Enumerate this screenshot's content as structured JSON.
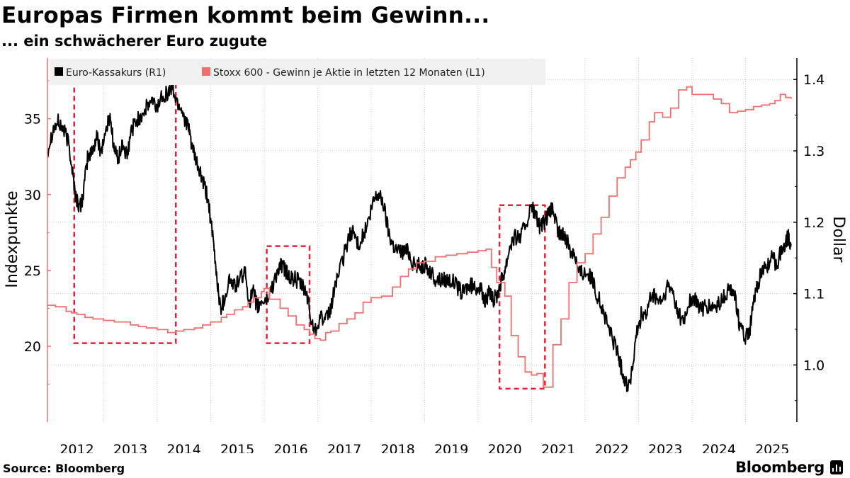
{
  "title": "Europas Firmen kommt beim Gewinn...",
  "subtitle": "... ein schwächerer Euro zugute",
  "source": "Source: Bloomberg",
  "brand": "Bloomberg",
  "colors": {
    "euro": "#000000",
    "eps": "#f26d6d",
    "highlight": "#e5213a",
    "grid": "#c8c8c8",
    "legend_bg": "#f0f0f0"
  },
  "chart_data": {
    "type": "line",
    "title": "Europas Firmen kommt beim Gewinn...",
    "subtitle": "... ein schwächerer Euro zugute",
    "x_ticks": [
      {
        "label": "2012",
        "year": 2012.5
      },
      {
        "label": "2013",
        "year": 2013.5
      },
      {
        "label": "2014",
        "year": 2014.5
      },
      {
        "label": "2015",
        "year": 2015.5
      },
      {
        "label": "2016",
        "year": 2016.5
      },
      {
        "label": "2017",
        "year": 2017.5
      },
      {
        "label": "2018",
        "year": 2018.5
      },
      {
        "label": "2019",
        "year": 2019.5
      },
      {
        "label": "2020",
        "year": 2020.5
      },
      {
        "label": "2021",
        "year": 2021.5
      },
      {
        "label": "2022",
        "year": 2022.5
      },
      {
        "label": "2023",
        "year": 2023.5
      },
      {
        "label": "2024",
        "year": 2024.5
      },
      {
        "label": "2025",
        "year": 2025.5
      }
    ],
    "x_range": [
      2011.95,
      2025.96
    ],
    "left_axis": {
      "label": "Indexpunkte",
      "range": [
        15,
        39
      ],
      "ticks": [
        20,
        25,
        30,
        35
      ],
      "tick_labels": [
        "20",
        "25",
        "30",
        "35"
      ]
    },
    "right_axis": {
      "label": "Dollar",
      "range": [
        0.92,
        1.43
      ],
      "ticks": [
        1.0,
        1.1,
        1.2,
        1.3,
        1.4
      ],
      "tick_labels": [
        "1.0",
        "1.1",
        "1.2",
        "1.3",
        "1.4"
      ]
    },
    "legend": {
      "position": "top-left",
      "items": [
        {
          "name": "Euro-Kassakurs (R1)",
          "series": "euro"
        },
        {
          "name": "Stoxx 600 - Gewinn je Aktie in letzten 12 Monaten (L1)",
          "series": "eps"
        }
      ]
    },
    "series": [
      {
        "id": "euro",
        "name": "Euro-Kassakurs (R1)",
        "axis": "right",
        "style": "noisy-line",
        "points": [
          [
            2011.95,
            1.3
          ],
          [
            2012.05,
            1.33
          ],
          [
            2012.15,
            1.34
          ],
          [
            2012.25,
            1.33
          ],
          [
            2012.35,
            1.31
          ],
          [
            2012.42,
            1.27
          ],
          [
            2012.48,
            1.235
          ],
          [
            2012.56,
            1.22
          ],
          [
            2012.62,
            1.24
          ],
          [
            2012.7,
            1.29
          ],
          [
            2012.8,
            1.3
          ],
          [
            2012.87,
            1.32
          ],
          [
            2012.95,
            1.3
          ],
          [
            2013.05,
            1.33
          ],
          [
            2013.12,
            1.35
          ],
          [
            2013.2,
            1.3
          ],
          [
            2013.28,
            1.29
          ],
          [
            2013.36,
            1.31
          ],
          [
            2013.44,
            1.29
          ],
          [
            2013.52,
            1.33
          ],
          [
            2013.6,
            1.34
          ],
          [
            2013.7,
            1.35
          ],
          [
            2013.8,
            1.36
          ],
          [
            2013.9,
            1.37
          ],
          [
            2014.0,
            1.36
          ],
          [
            2014.1,
            1.38
          ],
          [
            2014.2,
            1.38
          ],
          [
            2014.28,
            1.39
          ],
          [
            2014.36,
            1.37
          ],
          [
            2014.45,
            1.36
          ],
          [
            2014.55,
            1.34
          ],
          [
            2014.62,
            1.32
          ],
          [
            2014.7,
            1.29
          ],
          [
            2014.8,
            1.27
          ],
          [
            2014.88,
            1.25
          ],
          [
            2014.96,
            1.23
          ],
          [
            2015.05,
            1.17
          ],
          [
            2015.12,
            1.12
          ],
          [
            2015.18,
            1.08
          ],
          [
            2015.25,
            1.09
          ],
          [
            2015.35,
            1.12
          ],
          [
            2015.45,
            1.11
          ],
          [
            2015.55,
            1.12
          ],
          [
            2015.64,
            1.13
          ],
          [
            2015.72,
            1.09
          ],
          [
            2015.8,
            1.1
          ],
          [
            2015.88,
            1.08
          ],
          [
            2015.96,
            1.09
          ],
          [
            2016.05,
            1.09
          ],
          [
            2016.15,
            1.11
          ],
          [
            2016.25,
            1.13
          ],
          [
            2016.33,
            1.14
          ],
          [
            2016.42,
            1.13
          ],
          [
            2016.5,
            1.12
          ],
          [
            2016.6,
            1.12
          ],
          [
            2016.7,
            1.11
          ],
          [
            2016.8,
            1.1
          ],
          [
            2016.88,
            1.06
          ],
          [
            2016.96,
            1.05
          ],
          [
            2017.05,
            1.07
          ],
          [
            2017.15,
            1.06
          ],
          [
            2017.25,
            1.08
          ],
          [
            2017.35,
            1.12
          ],
          [
            2017.45,
            1.14
          ],
          [
            2017.55,
            1.17
          ],
          [
            2017.65,
            1.19
          ],
          [
            2017.75,
            1.17
          ],
          [
            2017.85,
            1.18
          ],
          [
            2017.95,
            1.2
          ],
          [
            2018.05,
            1.23
          ],
          [
            2018.12,
            1.24
          ],
          [
            2018.22,
            1.23
          ],
          [
            2018.32,
            1.19
          ],
          [
            2018.4,
            1.17
          ],
          [
            2018.5,
            1.16
          ],
          [
            2018.6,
            1.16
          ],
          [
            2018.7,
            1.16
          ],
          [
            2018.8,
            1.14
          ],
          [
            2018.9,
            1.14
          ],
          [
            2019.0,
            1.14
          ],
          [
            2019.1,
            1.13
          ],
          [
            2019.2,
            1.12
          ],
          [
            2019.3,
            1.12
          ],
          [
            2019.4,
            1.12
          ],
          [
            2019.5,
            1.12
          ],
          [
            2019.6,
            1.11
          ],
          [
            2019.7,
            1.1
          ],
          [
            2019.8,
            1.11
          ],
          [
            2019.9,
            1.11
          ],
          [
            2020.0,
            1.11
          ],
          [
            2020.08,
            1.1
          ],
          [
            2020.14,
            1.09
          ],
          [
            2020.2,
            1.1
          ],
          [
            2020.28,
            1.09
          ],
          [
            2020.36,
            1.1
          ],
          [
            2020.44,
            1.12
          ],
          [
            2020.52,
            1.14
          ],
          [
            2020.6,
            1.17
          ],
          [
            2020.7,
            1.18
          ],
          [
            2020.8,
            1.18
          ],
          [
            2020.9,
            1.2
          ],
          [
            2021.0,
            1.22
          ],
          [
            2021.08,
            1.21
          ],
          [
            2021.16,
            1.19
          ],
          [
            2021.24,
            1.2
          ],
          [
            2021.32,
            1.21
          ],
          [
            2021.4,
            1.22
          ],
          [
            2021.48,
            1.19
          ],
          [
            2021.56,
            1.18
          ],
          [
            2021.64,
            1.18
          ],
          [
            2021.72,
            1.16
          ],
          [
            2021.8,
            1.16
          ],
          [
            2021.88,
            1.13
          ],
          [
            2021.96,
            1.13
          ],
          [
            2022.05,
            1.13
          ],
          [
            2022.12,
            1.12
          ],
          [
            2022.22,
            1.1
          ],
          [
            2022.32,
            1.08
          ],
          [
            2022.4,
            1.06
          ],
          [
            2022.5,
            1.04
          ],
          [
            2022.6,
            1.02
          ],
          [
            2022.66,
            1.0
          ],
          [
            2022.74,
            0.98
          ],
          [
            2022.8,
            0.97
          ],
          [
            2022.88,
            0.99
          ],
          [
            2022.96,
            1.04
          ],
          [
            2023.05,
            1.07
          ],
          [
            2023.15,
            1.07
          ],
          [
            2023.25,
            1.1
          ],
          [
            2023.35,
            1.09
          ],
          [
            2023.45,
            1.09
          ],
          [
            2023.55,
            1.11
          ],
          [
            2023.65,
            1.1
          ],
          [
            2023.75,
            1.07
          ],
          [
            2023.85,
            1.06
          ],
          [
            2023.95,
            1.09
          ],
          [
            2024.05,
            1.09
          ],
          [
            2024.15,
            1.08
          ],
          [
            2024.25,
            1.08
          ],
          [
            2024.35,
            1.08
          ],
          [
            2024.45,
            1.08
          ],
          [
            2024.55,
            1.09
          ],
          [
            2024.65,
            1.1
          ],
          [
            2024.75,
            1.11
          ],
          [
            2024.82,
            1.09
          ],
          [
            2024.9,
            1.05
          ],
          [
            2024.98,
            1.04
          ],
          [
            2025.06,
            1.04
          ],
          [
            2025.14,
            1.08
          ],
          [
            2025.22,
            1.11
          ],
          [
            2025.3,
            1.13
          ],
          [
            2025.4,
            1.14
          ],
          [
            2025.5,
            1.15
          ],
          [
            2025.58,
            1.14
          ],
          [
            2025.66,
            1.16
          ],
          [
            2025.74,
            1.17
          ],
          [
            2025.8,
            1.18
          ],
          [
            2025.85,
            1.17
          ]
        ]
      },
      {
        "id": "eps",
        "name": "Stoxx 600 - Gewinn je Aktie in letzten 12 Monaten (L1)",
        "axis": "left",
        "style": "step-line",
        "points": [
          [
            2011.95,
            22.7
          ],
          [
            2012.1,
            22.6
          ],
          [
            2012.3,
            22.3
          ],
          [
            2012.4,
            22.2
          ],
          [
            2012.5,
            22.1
          ],
          [
            2012.65,
            21.9
          ],
          [
            2012.8,
            21.8
          ],
          [
            2013.0,
            21.7
          ],
          [
            2013.2,
            21.6
          ],
          [
            2013.3,
            21.6
          ],
          [
            2013.5,
            21.4
          ],
          [
            2013.65,
            21.3
          ],
          [
            2013.8,
            21.2
          ],
          [
            2014.0,
            21.1
          ],
          [
            2014.2,
            20.9
          ],
          [
            2014.35,
            21.0
          ],
          [
            2014.5,
            21.1
          ],
          [
            2014.7,
            21.2
          ],
          [
            2014.85,
            21.4
          ],
          [
            2015.0,
            21.6
          ],
          [
            2015.2,
            21.9
          ],
          [
            2015.3,
            22.1
          ],
          [
            2015.45,
            22.4
          ],
          [
            2015.6,
            22.6
          ],
          [
            2015.7,
            22.9
          ],
          [
            2015.8,
            23.2
          ],
          [
            2015.95,
            23.6
          ],
          [
            2016.0,
            23.8
          ],
          [
            2016.1,
            23.1
          ],
          [
            2016.3,
            22.5
          ],
          [
            2016.45,
            22.0
          ],
          [
            2016.6,
            21.4
          ],
          [
            2016.75,
            21.1
          ],
          [
            2016.85,
            20.8
          ],
          [
            2016.95,
            20.5
          ],
          [
            2017.05,
            20.4
          ],
          [
            2017.15,
            20.9
          ],
          [
            2017.25,
            21.0
          ],
          [
            2017.4,
            21.5
          ],
          [
            2017.55,
            21.8
          ],
          [
            2017.7,
            22.2
          ],
          [
            2017.85,
            22.9
          ],
          [
            2018.0,
            23.2
          ],
          [
            2018.2,
            23.3
          ],
          [
            2018.4,
            23.9
          ],
          [
            2018.55,
            24.6
          ],
          [
            2018.7,
            25.1
          ],
          [
            2018.85,
            25.5
          ],
          [
            2019.0,
            25.6
          ],
          [
            2019.2,
            25.9
          ],
          [
            2019.4,
            26.0
          ],
          [
            2019.6,
            26.1
          ],
          [
            2019.8,
            26.2
          ],
          [
            2020.0,
            26.3
          ],
          [
            2020.15,
            26.4
          ],
          [
            2020.25,
            25.2
          ],
          [
            2020.35,
            24.2
          ],
          [
            2020.5,
            23.3
          ],
          [
            2020.62,
            20.7
          ],
          [
            2020.75,
            19.3
          ],
          [
            2020.88,
            18.3
          ],
          [
            2021.0,
            18.1
          ],
          [
            2021.1,
            18.2
          ],
          [
            2021.22,
            17.3
          ],
          [
            2021.4,
            20.1
          ],
          [
            2021.55,
            21.8
          ],
          [
            2021.7,
            24.2
          ],
          [
            2021.85,
            25.5
          ],
          [
            2022.0,
            26.1
          ],
          [
            2022.15,
            27.4
          ],
          [
            2022.3,
            28.5
          ],
          [
            2022.45,
            29.9
          ],
          [
            2022.6,
            31.1
          ],
          [
            2022.75,
            31.8
          ],
          [
            2022.85,
            32.3
          ],
          [
            2022.95,
            32.8
          ],
          [
            2023.05,
            33.6
          ],
          [
            2023.2,
            34.8
          ],
          [
            2023.3,
            35.4
          ],
          [
            2023.45,
            35.1
          ],
          [
            2023.6,
            35.7
          ],
          [
            2023.75,
            36.9
          ],
          [
            2023.9,
            37.1
          ],
          [
            2024.0,
            36.6
          ],
          [
            2024.2,
            36.6
          ],
          [
            2024.4,
            36.3
          ],
          [
            2024.55,
            36.0
          ],
          [
            2024.7,
            35.4
          ],
          [
            2024.85,
            35.5
          ],
          [
            2025.0,
            35.6
          ],
          [
            2025.15,
            35.8
          ],
          [
            2025.3,
            35.9
          ],
          [
            2025.45,
            36.0
          ],
          [
            2025.55,
            36.2
          ],
          [
            2025.65,
            36.6
          ],
          [
            2025.75,
            36.4
          ],
          [
            2025.85,
            36.3
          ]
        ]
      }
    ],
    "annotations": [
      {
        "type": "dashed-box",
        "label": "highlight-2012-2014",
        "x": [
          2012.45,
          2014.35
        ],
        "y_left": [
          20.2,
          37.9
        ]
      },
      {
        "type": "dashed-box",
        "label": "highlight-2016",
        "x": [
          2016.05,
          2016.85
        ],
        "y_left": [
          20.2,
          26.6
        ]
      },
      {
        "type": "dashed-box",
        "label": "highlight-2020-2021",
        "x": [
          2020.4,
          2021.25
        ],
        "y_left": [
          17.2,
          29.3
        ]
      }
    ]
  }
}
